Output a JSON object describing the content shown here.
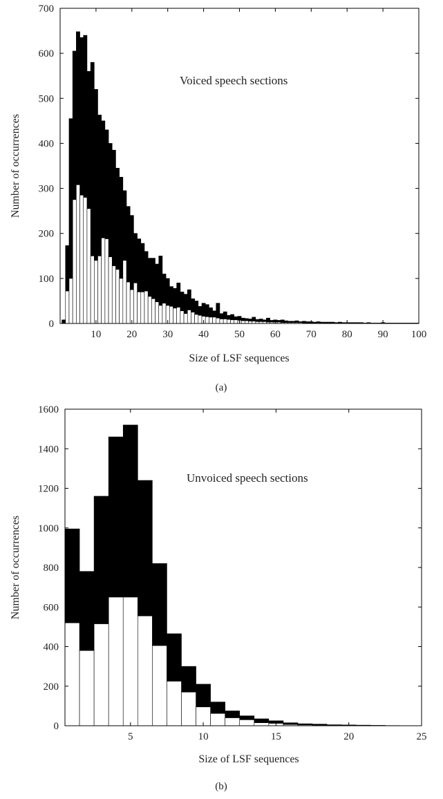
{
  "chart_data": [
    {
      "type": "bar",
      "panel": "a",
      "caption": "(a)",
      "annotation": "Voiced speech sections",
      "xlabel": "Size of LSF sequences",
      "ylabel": "Number of occurrences",
      "xlim": [
        0,
        100
      ],
      "ylim": [
        0,
        700
      ],
      "xticks": [
        10,
        20,
        30,
        40,
        50,
        60,
        70,
        80,
        90,
        100
      ],
      "yticks": [
        0,
        100,
        200,
        300,
        400,
        500,
        600,
        700
      ],
      "bar_width": 1,
      "grid": false,
      "stacked_overlay": true,
      "x": [
        1,
        2,
        3,
        4,
        5,
        6,
        7,
        8,
        9,
        10,
        11,
        12,
        13,
        14,
        15,
        16,
        17,
        18,
        19,
        20,
        21,
        22,
        23,
        24,
        25,
        26,
        27,
        28,
        29,
        30,
        31,
        32,
        33,
        34,
        35,
        36,
        37,
        38,
        39,
        40,
        41,
        42,
        43,
        44,
        45,
        46,
        47,
        48,
        49,
        50,
        51,
        52,
        53,
        54,
        55,
        56,
        57,
        58,
        59,
        60,
        61,
        62,
        63,
        64,
        65,
        66,
        67,
        68,
        69,
        70,
        71,
        72,
        73,
        74,
        75,
        76,
        77,
        78,
        79,
        80,
        81,
        82,
        83,
        84,
        85,
        86,
        87,
        88,
        89,
        90,
        91,
        92,
        93,
        94,
        95,
        96,
        97,
        98,
        99,
        100
      ],
      "series": [
        {
          "color": "#000000",
          "values": [
            8,
            173,
            455,
            605,
            648,
            635,
            640,
            560,
            580,
            520,
            463,
            450,
            430,
            400,
            385,
            345,
            325,
            295,
            260,
            240,
            200,
            188,
            178,
            160,
            145,
            145,
            132,
            150,
            110,
            100,
            82,
            78,
            90,
            70,
            65,
            75,
            55,
            50,
            38,
            45,
            42,
            35,
            28,
            45,
            22,
            26,
            18,
            20,
            15,
            16,
            12,
            11,
            10,
            14,
            9,
            10,
            8,
            12,
            7,
            8,
            7,
            8,
            6,
            5,
            5,
            6,
            4,
            5,
            4,
            4,
            3,
            4,
            3,
            3,
            3,
            3,
            2,
            3,
            2,
            2,
            2,
            2,
            2,
            2,
            1,
            2,
            1,
            1,
            1,
            2,
            1,
            1,
            1,
            1,
            1,
            1,
            1,
            1,
            1,
            1
          ]
        },
        {
          "color": "#ffffff",
          "values": [
            0,
            72,
            100,
            275,
            308,
            285,
            280,
            255,
            150,
            140,
            150,
            190,
            188,
            148,
            128,
            120,
            100,
            140,
            92,
            75,
            90,
            70,
            70,
            72,
            60,
            55,
            48,
            40,
            45,
            40,
            38,
            34,
            36,
            28,
            22,
            30,
            25,
            20,
            18,
            16,
            15,
            14,
            14,
            12,
            10,
            10,
            9,
            8,
            8,
            7,
            6,
            6,
            5,
            5,
            4,
            4,
            4,
            3,
            3,
            3,
            3,
            2,
            2,
            2,
            2,
            2,
            2,
            1,
            1,
            1,
            1,
            1,
            1,
            1,
            1,
            1,
            1,
            1,
            1,
            1,
            0,
            1,
            0,
            1,
            0,
            1,
            0,
            0,
            1,
            0,
            0,
            0,
            0,
            0,
            0,
            0,
            0,
            0,
            0,
            0
          ]
        }
      ]
    },
    {
      "type": "bar",
      "panel": "b",
      "caption": "(b)",
      "annotation": "Unvoiced speech sections",
      "xlabel": "Size of LSF sequences",
      "ylabel": "Number of occurrences",
      "xlim": [
        0.5,
        25
      ],
      "ylim": [
        0,
        1600
      ],
      "xticks": [
        5,
        10,
        15,
        20,
        25
      ],
      "yticks": [
        0,
        200,
        400,
        600,
        800,
        1000,
        1200,
        1400,
        1600
      ],
      "bar_width": 1,
      "grid": false,
      "stacked_overlay": true,
      "x": [
        1,
        2,
        3,
        4,
        5,
        6,
        7,
        8,
        9,
        10,
        11,
        12,
        13,
        14,
        15,
        16,
        17,
        18,
        19,
        20,
        21,
        22,
        23
      ],
      "series": [
        {
          "color": "#000000",
          "values": [
            995,
            780,
            1160,
            1460,
            1520,
            1240,
            820,
            465,
            300,
            210,
            120,
            75,
            50,
            35,
            25,
            15,
            10,
            8,
            5,
            4,
            3,
            2,
            1
          ]
        },
        {
          "color": "#ffffff",
          "values": [
            520,
            380,
            515,
            650,
            650,
            555,
            405,
            225,
            170,
            95,
            62,
            40,
            30,
            15,
            12,
            6,
            4,
            3,
            2,
            1,
            1,
            0,
            0
          ]
        }
      ]
    }
  ]
}
